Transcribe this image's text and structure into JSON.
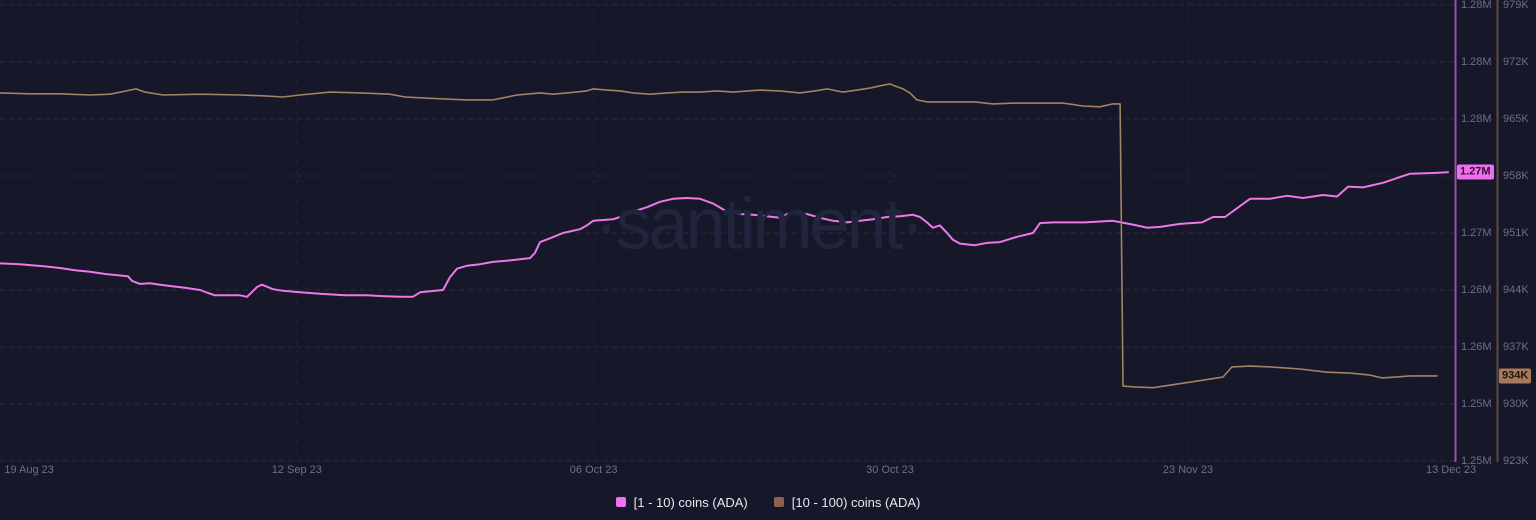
{
  "watermark": "·santiment·",
  "colors": {
    "background": "#161728",
    "gridline": "rgba(255,255,255,0.08)",
    "tick_text": "#6a7188",
    "legend_text": "#e8e8f2",
    "watermark_text": "#20253e"
  },
  "legend": [
    {
      "label": "[1 - 10) coins (ADA)",
      "color": "#ef6fee"
    },
    {
      "label": "[10 - 100) coins (ADA)",
      "color": "#8b6050"
    }
  ],
  "chart_data": {
    "type": "line",
    "title": "",
    "xlabel": "",
    "ylabel": "",
    "grid": "dashed",
    "legend_position": "bottom-center",
    "x_axis": {
      "labels": [
        "19 Aug 23",
        "12 Sep 23",
        "06 Oct 23",
        "30 Oct 23",
        "23 Nov 23",
        "13 Dec 23"
      ],
      "label_positions": [
        0.003,
        0.204,
        0.408,
        0.6117,
        0.8165,
        0.9973
      ],
      "gridline_positions": [
        0.204,
        0.408,
        0.6117,
        0.8165
      ]
    },
    "left_axis": {
      "title": "[1 - 10) coins (ADA)",
      "tick_labels": [
        "1.28M",
        "1.28M",
        "1.28M",
        "1.27M",
        "1.27M",
        "1.26M",
        "1.26M",
        "1.25M",
        "1.25M"
      ],
      "top_value": 1282500,
      "bottom_value": 1252500,
      "axis_color": "#9d4fae",
      "current_value": 1271500,
      "current_value_label": "1.27M",
      "badge_bg": "#ee6fee",
      "badge_text_color": "#33122f"
    },
    "right_axis": {
      "title": "[10 - 100) coins (ADA)",
      "tick_labels": [
        "979K",
        "972K",
        "965K",
        "958K",
        "951K",
        "944K",
        "937K",
        "930K",
        "923K"
      ],
      "top_value": 979000,
      "bottom_value": 923000,
      "axis_color": "#5e4a42",
      "current_value": 933450,
      "current_value_label": "934K",
      "badge_bg": "#a87a5c",
      "badge_text_color": "#241409"
    },
    "series": [
      {
        "name": "[1 - 10) coins (ADA)",
        "axis": "left_axis",
        "color": "#ee78e8",
        "stroke_width": 2,
        "points": [
          [
            0.0,
            1265500
          ],
          [
            0.0137,
            1265450
          ],
          [
            0.0309,
            1265300
          ],
          [
            0.0412,
            1265200
          ],
          [
            0.0515,
            1265050
          ],
          [
            0.0619,
            1264950
          ],
          [
            0.0722,
            1264800
          ],
          [
            0.088,
            1264650
          ],
          [
            0.0907,
            1264350
          ],
          [
            0.0962,
            1264150
          ],
          [
            0.1031,
            1264200
          ],
          [
            0.11,
            1264100
          ],
          [
            0.1182,
            1264000
          ],
          [
            0.1271,
            1263900
          ],
          [
            0.1375,
            1263750
          ],
          [
            0.143,
            1263550
          ],
          [
            0.1478,
            1263400
          ],
          [
            0.1649,
            1263400
          ],
          [
            0.1698,
            1263300
          ],
          [
            0.1766,
            1263950
          ],
          [
            0.1801,
            1264100
          ],
          [
            0.1876,
            1263800
          ],
          [
            0.1945,
            1263700
          ],
          [
            0.2062,
            1263600
          ],
          [
            0.2199,
            1263500
          ],
          [
            0.2371,
            1263400
          ],
          [
            0.2523,
            1263400
          ],
          [
            0.2626,
            1263350
          ],
          [
            0.2749,
            1263300
          ],
          [
            0.2838,
            1263300
          ],
          [
            0.2887,
            1263600
          ],
          [
            0.3045,
            1263750
          ],
          [
            0.3093,
            1264600
          ],
          [
            0.3141,
            1265150
          ],
          [
            0.321,
            1265350
          ],
          [
            0.3299,
            1265450
          ],
          [
            0.3388,
            1265600
          ],
          [
            0.3505,
            1265700
          ],
          [
            0.3643,
            1265850
          ],
          [
            0.3677,
            1266200
          ],
          [
            0.3711,
            1266900
          ],
          [
            0.378,
            1267150
          ],
          [
            0.3869,
            1267500
          ],
          [
            0.3986,
            1267750
          ],
          [
            0.4034,
            1268000
          ],
          [
            0.4076,
            1268300
          ],
          [
            0.4213,
            1268400
          ],
          [
            0.4261,
            1268550
          ],
          [
            0.4351,
            1268900
          ],
          [
            0.4447,
            1269200
          ],
          [
            0.4536,
            1269550
          ],
          [
            0.4625,
            1269750
          ],
          [
            0.4722,
            1269800
          ],
          [
            0.4811,
            1269750
          ],
          [
            0.49,
            1269450
          ],
          [
            0.4997,
            1268900
          ],
          [
            0.5086,
            1268750
          ],
          [
            0.5175,
            1268700
          ],
          [
            0.5271,
            1268600
          ],
          [
            0.5361,
            1268500
          ],
          [
            0.5409,
            1268750
          ],
          [
            0.545,
            1268900
          ],
          [
            0.5546,
            1268750
          ],
          [
            0.5636,
            1268500
          ],
          [
            0.5725,
            1268300
          ],
          [
            0.5821,
            1268200
          ],
          [
            0.5911,
            1268300
          ],
          [
            0.6,
            1268400
          ],
          [
            0.6096,
            1268550
          ],
          [
            0.6186,
            1268600
          ],
          [
            0.6275,
            1268700
          ],
          [
            0.6323,
            1268550
          ],
          [
            0.6371,
            1268200
          ],
          [
            0.6412,
            1267850
          ],
          [
            0.646,
            1268000
          ],
          [
            0.6509,
            1267500
          ],
          [
            0.655,
            1267050
          ],
          [
            0.6598,
            1266800
          ],
          [
            0.6701,
            1266700
          ],
          [
            0.6784,
            1266850
          ],
          [
            0.6873,
            1266900
          ],
          [
            0.699,
            1267250
          ],
          [
            0.71,
            1267500
          ],
          [
            0.7148,
            1268150
          ],
          [
            0.7237,
            1268200
          ],
          [
            0.7457,
            1268200
          ],
          [
            0.7649,
            1268300
          ],
          [
            0.7787,
            1268050
          ],
          [
            0.7883,
            1267850
          ],
          [
            0.7973,
            1267900
          ],
          [
            0.811,
            1268100
          ],
          [
            0.8261,
            1268200
          ],
          [
            0.8337,
            1268550
          ],
          [
            0.8419,
            1268550
          ],
          [
            0.8591,
            1269750
          ],
          [
            0.8729,
            1269750
          ],
          [
            0.8845,
            1269950
          ],
          [
            0.8955,
            1269800
          ],
          [
            0.9093,
            1270000
          ],
          [
            0.9189,
            1269900
          ],
          [
            0.9265,
            1270550
          ],
          [
            0.9368,
            1270500
          ],
          [
            0.9505,
            1270800
          ],
          [
            0.9691,
            1271400
          ],
          [
            0.9849,
            1271450
          ],
          [
            0.9952,
            1271500
          ]
        ]
      },
      {
        "name": "[10 - 100) coins (ADA)",
        "axis": "right_axis",
        "color": "#a28365",
        "stroke_width": 1.6,
        "points": [
          [
            0.0,
            968200
          ],
          [
            0.0206,
            968100
          ],
          [
            0.0412,
            968100
          ],
          [
            0.0619,
            967950
          ],
          [
            0.0756,
            968050
          ],
          [
            0.0935,
            968700
          ],
          [
            0.0997,
            968300
          ],
          [
            0.112,
            967950
          ],
          [
            0.1375,
            968050
          ],
          [
            0.1649,
            967950
          ],
          [
            0.1808,
            967850
          ],
          [
            0.1945,
            967700
          ],
          [
            0.2062,
            967950
          ],
          [
            0.2268,
            968300
          ],
          [
            0.2474,
            968200
          ],
          [
            0.268,
            968050
          ],
          [
            0.2784,
            967700
          ],
          [
            0.2887,
            967600
          ],
          [
            0.3058,
            967450
          ],
          [
            0.321,
            967350
          ],
          [
            0.3388,
            967350
          ],
          [
            0.3553,
            967950
          ],
          [
            0.3711,
            968200
          ],
          [
            0.3801,
            968050
          ],
          [
            0.3897,
            968200
          ],
          [
            0.4034,
            968450
          ],
          [
            0.4076,
            968700
          ],
          [
            0.4172,
            968550
          ],
          [
            0.4261,
            968450
          ],
          [
            0.4351,
            968200
          ],
          [
            0.4467,
            968050
          ],
          [
            0.4584,
            968200
          ],
          [
            0.4694,
            968300
          ],
          [
            0.4811,
            968300
          ],
          [
            0.4928,
            968450
          ],
          [
            0.5038,
            968300
          ],
          [
            0.5223,
            968550
          ],
          [
            0.5361,
            968450
          ],
          [
            0.5498,
            968200
          ],
          [
            0.5601,
            968450
          ],
          [
            0.5684,
            968700
          ],
          [
            0.5794,
            968300
          ],
          [
            0.589,
            968550
          ],
          [
            0.5979,
            968800
          ],
          [
            0.6069,
            969150
          ],
          [
            0.6117,
            969300
          ],
          [
            0.6165,
            968950
          ],
          [
            0.6206,
            968700
          ],
          [
            0.6254,
            968200
          ],
          [
            0.6302,
            967350
          ],
          [
            0.6371,
            967100
          ],
          [
            0.6529,
            967100
          ],
          [
            0.6701,
            967100
          ],
          [
            0.6825,
            966850
          ],
          [
            0.6976,
            966950
          ],
          [
            0.7148,
            966950
          ],
          [
            0.7306,
            966950
          ],
          [
            0.7443,
            966600
          ],
          [
            0.756,
            966500
          ],
          [
            0.7649,
            966850
          ],
          [
            0.7698,
            966850
          ],
          [
            0.7718,
            932200
          ],
          [
            0.7801,
            932100
          ],
          [
            0.7925,
            932000
          ],
          [
            0.8131,
            932550
          ],
          [
            0.8405,
            933300
          ],
          [
            0.8467,
            934550
          ],
          [
            0.8591,
            934650
          ],
          [
            0.8729,
            934550
          ],
          [
            0.8935,
            934300
          ],
          [
            0.912,
            933900
          ],
          [
            0.9278,
            933800
          ],
          [
            0.9416,
            933550
          ],
          [
            0.9498,
            933200
          ],
          [
            0.9588,
            933300
          ],
          [
            0.9691,
            933450
          ],
          [
            0.9876,
            933450
          ]
        ]
      }
    ]
  }
}
